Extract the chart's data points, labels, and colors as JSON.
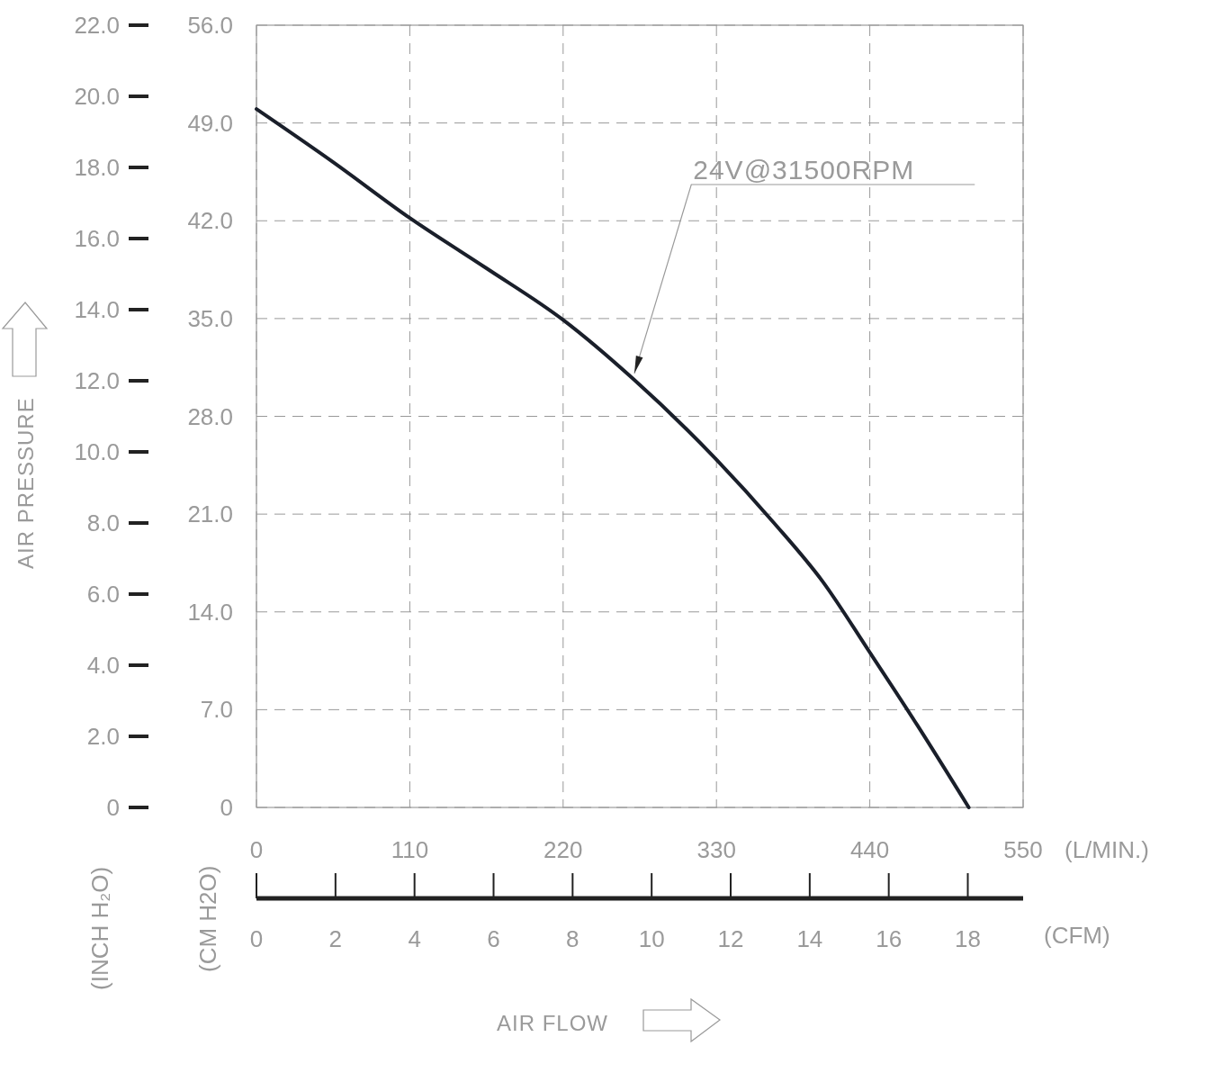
{
  "chart_data": {
    "type": "line",
    "xlabel": "(L/MIN.)",
    "x2label": "(CFM)",
    "ylabel": "(CM H2O)",
    "y2label": "(INCH H₂O)",
    "annotations": [
      "AIR PRESSURE",
      "AIR FLOW"
    ],
    "x": [
      0,
      55,
      110,
      165,
      220,
      270,
      330,
      371,
      406,
      440,
      474,
      511
    ],
    "series": [
      {
        "name": "24V@31500RPM",
        "color": "#1a1f2a",
        "values": [
          50.0,
          46.2,
          42.2,
          38.6,
          34.9,
          30.7,
          24.9,
          20.4,
          16.2,
          11.1,
          5.9,
          0
        ]
      }
    ],
    "xlim": [
      0,
      550
    ],
    "xticks": [
      0,
      110,
      220,
      330,
      440,
      550
    ],
    "x2lim": [
      0,
      19.4
    ],
    "x2ticks": [
      0,
      2,
      4,
      6,
      8,
      10,
      12,
      14,
      16,
      18
    ],
    "ylim": [
      0,
      56
    ],
    "yticks": [
      {
        "value": 0,
        "label": "0"
      },
      {
        "value": 7,
        "label": "7.0"
      },
      {
        "value": 14,
        "label": "14.0"
      },
      {
        "value": 21,
        "label": "21.0"
      },
      {
        "value": 28,
        "label": "28.0"
      },
      {
        "value": 35,
        "label": "35.0"
      },
      {
        "value": 42,
        "label": "42.0"
      },
      {
        "value": 49,
        "label": "49.0"
      },
      {
        "value": 56,
        "label": "56.0"
      }
    ],
    "y2lim": [
      0,
      22
    ],
    "y2ticks": [
      {
        "value": 0,
        "label": "0"
      },
      {
        "value": 2,
        "label": "2.0"
      },
      {
        "value": 4,
        "label": "4.0"
      },
      {
        "value": 6,
        "label": "6.0"
      },
      {
        "value": 8,
        "label": "8.0"
      },
      {
        "value": 10,
        "label": "10.0"
      },
      {
        "value": 12,
        "label": "12.0"
      },
      {
        "value": 14,
        "label": "14.0"
      },
      {
        "value": 16,
        "label": "16.0"
      },
      {
        "value": 18,
        "label": "18.0"
      },
      {
        "value": 20,
        "label": "20.0"
      },
      {
        "value": 22,
        "label": "22.0"
      }
    ],
    "grid": true,
    "line_style": "solid"
  }
}
